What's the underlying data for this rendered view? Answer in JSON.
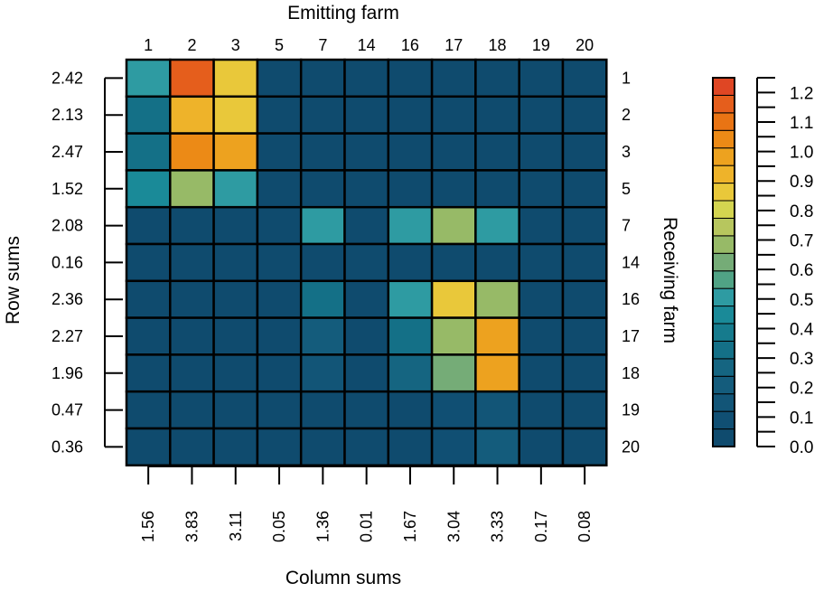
{
  "chart_data": {
    "type": "heatmap",
    "top_axis_title": "Emitting farm",
    "right_axis_title": "Receiving farm",
    "left_axis_title": "Row sums",
    "bottom_axis_title": "Column sums",
    "columns": [
      "1",
      "2",
      "3",
      "5",
      "7",
      "14",
      "16",
      "17",
      "18",
      "19",
      "20"
    ],
    "rows": [
      "1",
      "2",
      "3",
      "5",
      "7",
      "14",
      "16",
      "17",
      "18",
      "19",
      "20"
    ],
    "row_sums": [
      "2.42",
      "2.13",
      "2.47",
      "1.52",
      "2.08",
      "0.16",
      "2.36",
      "2.27",
      "1.96",
      "0.47",
      "0.36"
    ],
    "column_sums": [
      "1.56",
      "3.83",
      "3.11",
      "0.05",
      "1.36",
      "0.01",
      "1.67",
      "3.04",
      "3.33",
      "0.17",
      "0.08"
    ],
    "values": [
      [
        0.5,
        1.15,
        0.85,
        0.0,
        0.0,
        0.0,
        0.0,
        0.0,
        0.0,
        0.0,
        0.0
      ],
      [
        0.3,
        0.9,
        0.85,
        0.0,
        0.05,
        0.0,
        0.0,
        0.0,
        0.0,
        0.0,
        0.0
      ],
      [
        0.35,
        1.05,
        1.0,
        0.0,
        0.0,
        0.0,
        0.0,
        0.0,
        0.0,
        0.0,
        0.0
      ],
      [
        0.45,
        0.7,
        0.5,
        0.0,
        0.0,
        0.0,
        0.0,
        0.0,
        0.0,
        0.0,
        0.0
      ],
      [
        0.0,
        0.0,
        0.0,
        0.0,
        0.5,
        0.0,
        0.5,
        0.7,
        0.5,
        0.0,
        0.0
      ],
      [
        0.05,
        0.0,
        0.0,
        0.0,
        0.0,
        0.0,
        0.0,
        0.0,
        0.0,
        0.0,
        0.0
      ],
      [
        0.0,
        0.0,
        0.0,
        0.0,
        0.35,
        0.0,
        0.5,
        0.85,
        0.7,
        0.0,
        0.0
      ],
      [
        0.0,
        0.0,
        0.0,
        0.0,
        0.2,
        0.0,
        0.35,
        0.7,
        1.0,
        0.0,
        0.0
      ],
      [
        0.0,
        0.0,
        0.0,
        0.0,
        0.15,
        0.0,
        0.25,
        0.65,
        1.0,
        0.0,
        0.0
      ],
      [
        0.0,
        0.0,
        0.0,
        0.0,
        0.0,
        0.0,
        0.05,
        0.1,
        0.15,
        0.0,
        0.0
      ],
      [
        0.0,
        0.0,
        0.0,
        0.0,
        0.0,
        0.0,
        0.05,
        0.1,
        0.2,
        0.0,
        0.0
      ]
    ],
    "color_scale": {
      "range": [
        0,
        1.25
      ],
      "colors": [
        "#0f4b6e",
        "#104f73",
        "#125577",
        "#145c7c",
        "#156581",
        "#147087",
        "#167b8d",
        "#1a8a98",
        "#2e9ba2",
        "#50a385",
        "#75ac77",
        "#97ba67",
        "#b7c65e",
        "#d4d550",
        "#e9c83a",
        "#eeb32a",
        "#eda21f",
        "#ec8a16",
        "#e97414",
        "#e55e1c",
        "#df4624"
      ],
      "legend_labels": [
        "1.2",
        "1.1",
        "1.0",
        "0.9",
        "0.8",
        "0.7",
        "0.6",
        "0.5",
        "0.4",
        "0.3",
        "0.2",
        "0.1",
        "0.0"
      ],
      "legend_values": [
        1.2,
        1.1,
        1.0,
        0.9,
        0.8,
        0.7,
        0.6,
        0.5,
        0.4,
        0.3,
        0.2,
        0.1,
        0.0
      ]
    }
  }
}
